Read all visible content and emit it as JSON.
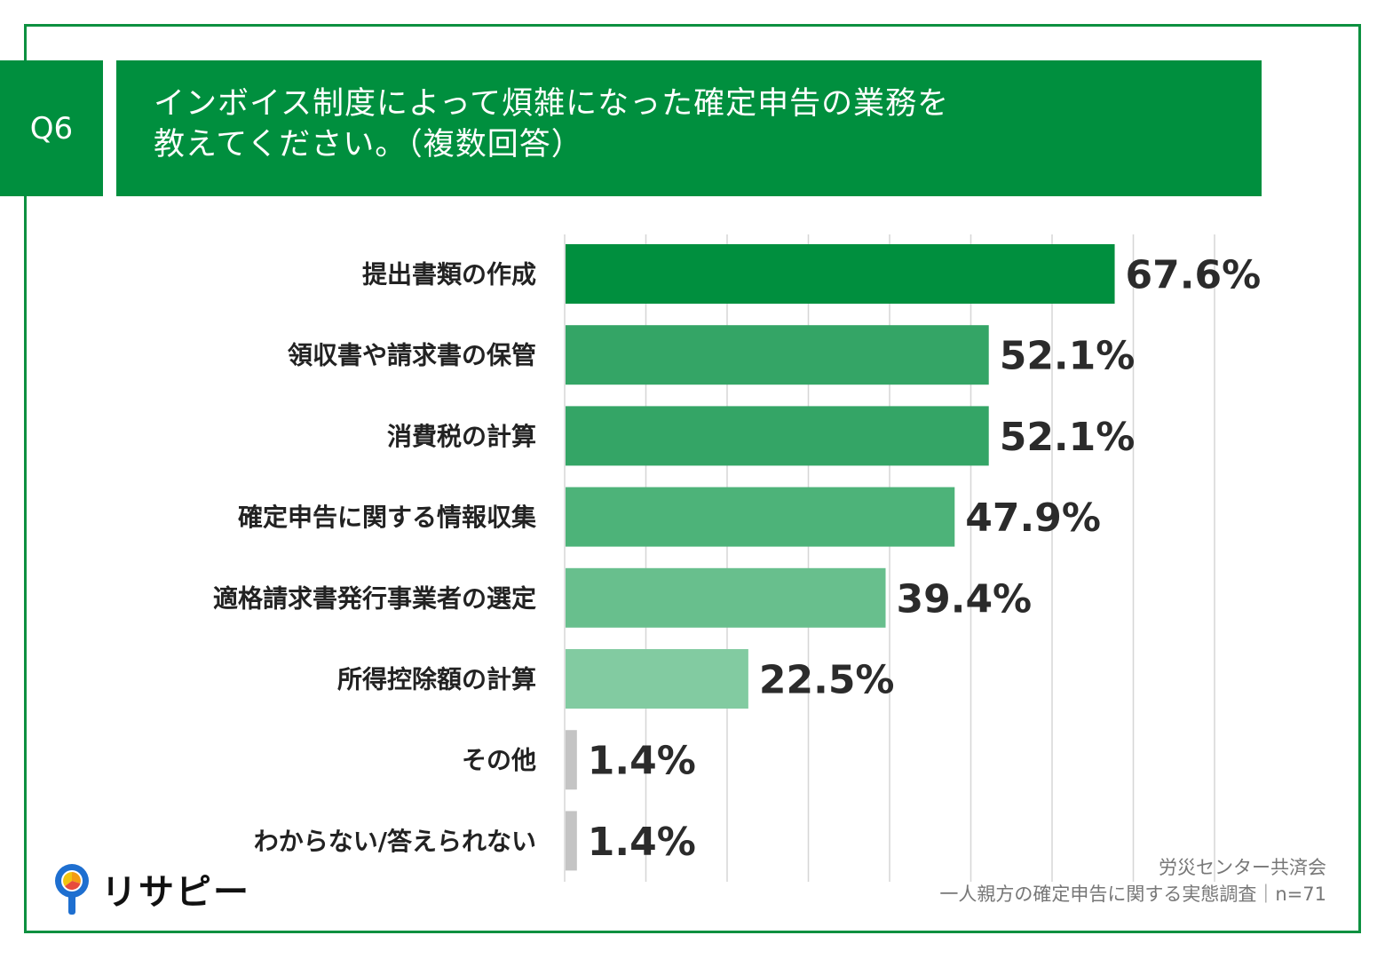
{
  "question": {
    "number": "Q6",
    "title_line1": "インボイス制度によって煩雑になった確定申告の業務を",
    "title_line2": "教えてください。（複数回答）"
  },
  "chart_data": {
    "type": "bar",
    "orientation": "horizontal",
    "categories": [
      "提出書類の作成",
      "領収書や請求書の保管",
      "消費税の計算",
      "確定申告に関する情報収集",
      "適格請求書発行事業者の選定",
      "所得控除額の計算",
      "その他",
      "わからない/答えられない"
    ],
    "values": [
      67.6,
      52.1,
      52.1,
      47.9,
      39.4,
      22.5,
      1.4,
      1.4
    ],
    "value_labels": [
      "67.6%",
      "52.1%",
      "52.1%",
      "47.9%",
      "39.4%",
      "22.5%",
      "1.4%",
      "1.4%"
    ],
    "bar_colors": [
      "#008f3e",
      "#34a566",
      "#34a566",
      "#4db379",
      "#68bf8d",
      "#82cba1",
      "#c4c4c4",
      "#c4c4c4"
    ],
    "xlim": [
      0,
      80
    ],
    "grid": true
  },
  "source": {
    "line1": "労災センター共済会",
    "line2": "一人親方の確定申告に関する実態調査｜n=71"
  },
  "logo": {
    "text": "リサピー",
    "icon": "location-pin-icon"
  }
}
